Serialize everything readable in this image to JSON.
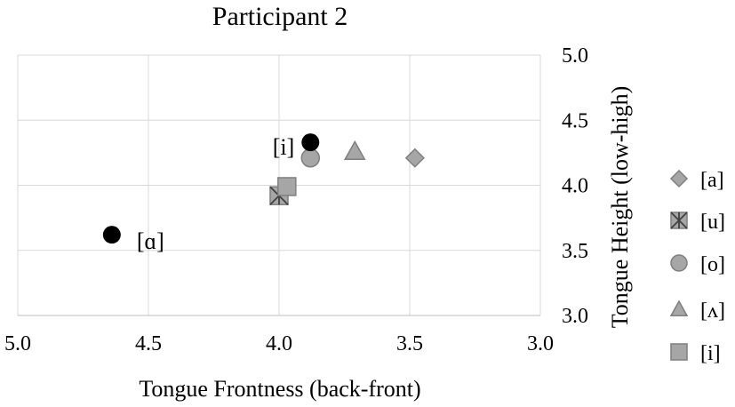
{
  "chart_data": {
    "type": "scatter",
    "title": "Participant 2",
    "xlabel": "Tongue Frontness (back-front)",
    "ylabel": "Tongue Height (low-high)",
    "xlim": [
      5.0,
      3.0
    ],
    "ylim": [
      3.0,
      5.0
    ],
    "x_reversed": true,
    "y_axis_side": "right",
    "x_ticks": [
      "5.0",
      "4.5",
      "4.0",
      "3.5",
      "3.0"
    ],
    "y_ticks": [
      "3.0",
      "3.5",
      "4.0",
      "4.5",
      "5.0"
    ],
    "grid": true,
    "legend_position": "right",
    "series": [
      {
        "name": "[a]",
        "marker": "diamond",
        "color": "#a6a6a6",
        "points": [
          {
            "x": 3.48,
            "y": 4.21
          }
        ]
      },
      {
        "name": "[u]",
        "marker": "asterisk-square",
        "color": "#a6a6a6",
        "points": [
          {
            "x": 4.0,
            "y": 3.92
          }
        ]
      },
      {
        "name": "[o]",
        "marker": "circle",
        "color": "#a6a6a6",
        "points": [
          {
            "x": 3.88,
            "y": 4.21
          }
        ]
      },
      {
        "name": "[ʌ]",
        "marker": "triangle",
        "color": "#a6a6a6",
        "points": [
          {
            "x": 3.71,
            "y": 4.26
          }
        ]
      },
      {
        "name": "[i]",
        "marker": "square",
        "color": "#a6a6a6",
        "points": [
          {
            "x": 3.97,
            "y": 3.99
          }
        ]
      }
    ],
    "highlighted_points": [
      {
        "label": "[i]",
        "x": 3.88,
        "y": 4.33,
        "color": "#000000"
      },
      {
        "label": "[ɑ]",
        "x": 4.64,
        "y": 3.62,
        "color": "#000000"
      }
    ]
  }
}
